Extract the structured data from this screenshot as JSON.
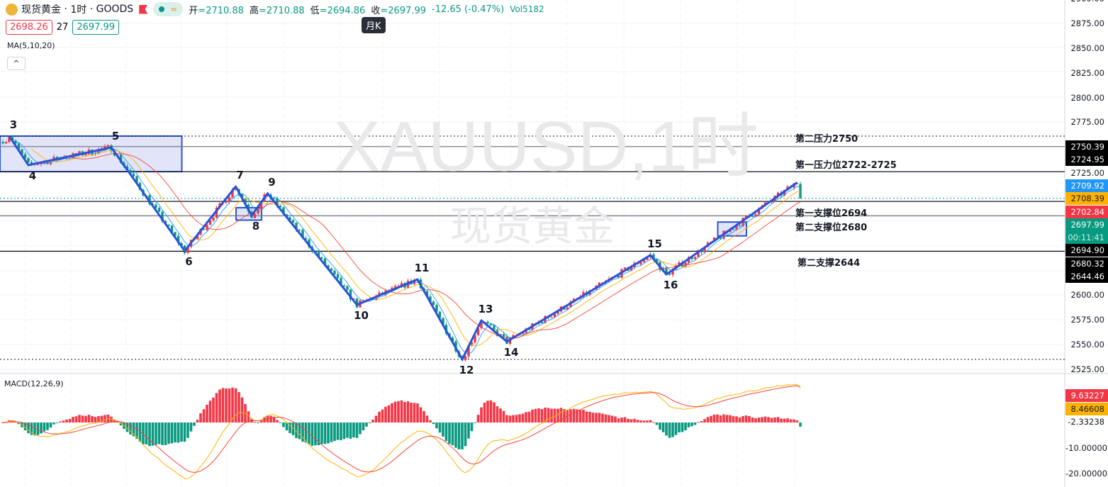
{
  "header": {
    "symbol": "现货黄金",
    "interval": "1时",
    "exchange": "GOODS",
    "open_label": "开",
    "open": "2710.88",
    "high_label": "高",
    "high": "2710.88",
    "low_label": "低",
    "low": "2694.86",
    "close_label": "收",
    "close": "2697.99",
    "change": "-12.65 (-0.47%)",
    "volume": "Vol5182",
    "tooltip": "月K"
  },
  "quote": {
    "sell": "2698.26",
    "spread": "27",
    "buy": "2697.99"
  },
  "indicator": {
    "ma": "MA(5,10,20)",
    "macd": "MACD(12,26,9)",
    "collapse": "^"
  },
  "watermark": {
    "line1": "XAUUSD,1时",
    "line2": "现货黄金"
  },
  "colors": {
    "up": "#f23645",
    "down": "#089981",
    "zigzag": "#2a52d8",
    "ma5": "#2196f3",
    "ma10": "#ffb300",
    "ma20": "#f44336",
    "box": "#dde0f8"
  },
  "price_axis": {
    "ticks": [
      "2900.00",
      "2875.00",
      "2850.00",
      "2825.00",
      "2800.00",
      "2775.00",
      "2600.00",
      "2575.00",
      "2550.00",
      "2525.00"
    ],
    "labels": [
      {
        "text": "2750.39",
        "bg": "#000000",
        "fg": "#ffffff"
      },
      {
        "text": "2724.95",
        "bg": "#000000",
        "fg": "#ffffff"
      },
      {
        "text": "2725.00",
        "bg": "#ffffff",
        "fg": "#131722"
      },
      {
        "text": "2709.92",
        "bg": "#2196f3",
        "fg": "#ffffff"
      },
      {
        "text": "2708.39",
        "bg": "#ffb300",
        "fg": "#131722"
      },
      {
        "text": "2702.84",
        "bg": "#f23645",
        "fg": "#ffffff"
      },
      {
        "text": "2697.99",
        "bg": "#089981",
        "fg": "#ffffff"
      },
      {
        "text": "00:11:41",
        "bg": "#089981",
        "fg": "#cdeee7"
      },
      {
        "text": "2694.90",
        "bg": "#000000",
        "fg": "#ffffff"
      },
      {
        "text": "2680.32",
        "bg": "#000000",
        "fg": "#ffffff"
      },
      {
        "text": "2644.46",
        "bg": "#000000",
        "fg": "#ffffff"
      }
    ]
  },
  "macd_axis": {
    "labels": [
      {
        "text": "9.63227",
        "bg": "#f23645",
        "fg": "#ffffff"
      },
      {
        "text": "8.46608",
        "bg": "#ffb300",
        "fg": "#131722"
      },
      {
        "text": "-2.33238",
        "bg": "#ffffff",
        "fg": "#131722"
      },
      {
        "text": "-10.00000",
        "bg": "#ffffff",
        "fg": "#131722"
      },
      {
        "text": "-20.00000",
        "bg": "#ffffff",
        "fg": "#131722"
      }
    ]
  },
  "levels": [
    {
      "price": 2761,
      "style": "dotted",
      "color": "#131722"
    },
    {
      "price": 2750.39,
      "style": "solid",
      "color": "#787b86",
      "text": "第二压力2750"
    },
    {
      "price": 2724.95,
      "style": "solid",
      "color": "#131722",
      "text": "第一压力位2722-2725"
    },
    {
      "price": 2697.99,
      "style": "dotted",
      "color": "#089981"
    },
    {
      "price": 2694.9,
      "style": "solid",
      "color": "#131722",
      "text": "第一支撑位2694"
    },
    {
      "price": 2680.32,
      "style": "solid",
      "color": "#787b86",
      "text": "第二支撑位2680"
    },
    {
      "price": 2644.46,
      "style": "solid",
      "color": "#131722",
      "text": "第二支撑2644"
    },
    {
      "price": 2535,
      "style": "dotted",
      "color": "#131722"
    }
  ],
  "zones": [
    {
      "bars": [
        0,
        57
      ],
      "prices": [
        2761,
        2725
      ]
    },
    {
      "bars": [
        74,
        82
      ],
      "prices": [
        2688.5,
        2676
      ]
    },
    {
      "bars": [
        225,
        234
      ],
      "prices": [
        2674,
        2660
      ]
    }
  ],
  "pivots": [
    {
      "label": "3",
      "bar": 2,
      "price": 2761,
      "type": "peak"
    },
    {
      "label": "4",
      "bar": 8,
      "price": 2731.6,
      "type": "trough"
    },
    {
      "label": "5",
      "bar": 34,
      "price": 2749.5,
      "type": "peak"
    },
    {
      "label": "6",
      "bar": 57,
      "price": 2644.8,
      "type": "trough"
    },
    {
      "label": "7",
      "bar": 73,
      "price": 2710,
      "type": "peak"
    },
    {
      "label": "8",
      "bar": 78,
      "price": 2680.6,
      "type": "trough"
    },
    {
      "label": "9",
      "bar": 83,
      "price": 2703,
      "type": "peak"
    },
    {
      "label": "10",
      "bar": 111,
      "price": 2590.3,
      "type": "trough"
    },
    {
      "label": "11",
      "bar": 130,
      "price": 2616,
      "type": "peak"
    },
    {
      "label": "12",
      "bar": 144,
      "price": 2535,
      "type": "trough"
    },
    {
      "label": "13",
      "bar": 150,
      "price": 2574.5,
      "type": "peak"
    },
    {
      "label": "14",
      "bar": 158,
      "price": 2553,
      "type": "trough"
    },
    {
      "label": "15",
      "bar": 203,
      "price": 2640.5,
      "type": "peak"
    },
    {
      "label": "16",
      "bar": 208,
      "price": 2621,
      "type": "trough"
    },
    {
      "label": "",
      "bar": 249,
      "price": 2714,
      "type": "peak"
    }
  ],
  "last_close": 2697.99
}
